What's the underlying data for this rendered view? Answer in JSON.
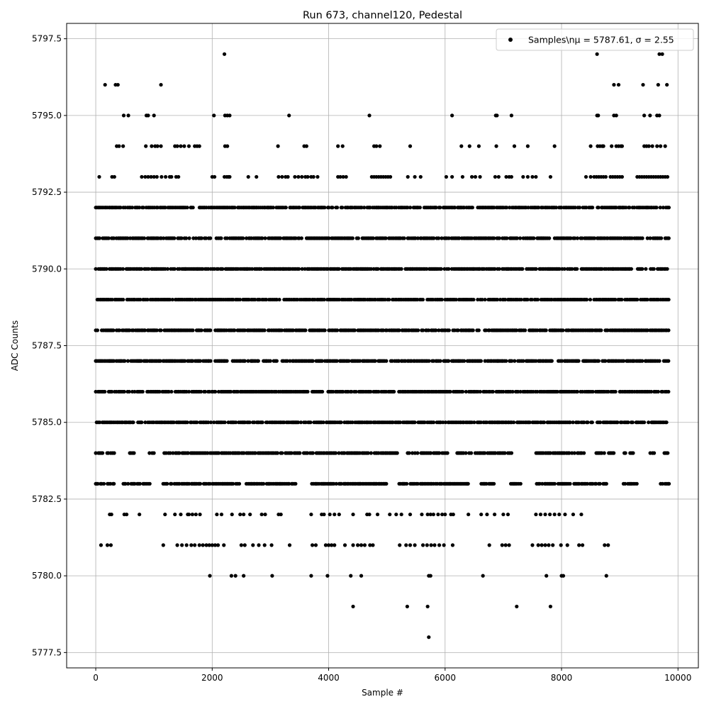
{
  "chart_data": {
    "type": "scatter",
    "title": "Run 673, channel120, Pedestal",
    "xlabel": "Sample #",
    "ylabel": "ADC Counts",
    "xlim": [
      -500,
      10350
    ],
    "ylim": [
      5777.0,
      5798.0
    ],
    "x_ticks": [
      0,
      2000,
      4000,
      6000,
      8000,
      10000
    ],
    "y_ticks": [
      5777.5,
      5780.0,
      5782.5,
      5785.0,
      5787.5,
      5790.0,
      5792.5,
      5795.0,
      5797.5
    ],
    "x_tick_labels": [
      "0",
      "2000",
      "4000",
      "6000",
      "8000",
      "10000"
    ],
    "y_tick_labels": [
      "5777.5",
      "5780.0",
      "5782.5",
      "5785.0",
      "5787.5",
      "5790.0",
      "5792.5",
      "5795.0",
      "5797.5"
    ],
    "grid": true,
    "legend_position": "top-right",
    "marker_color": "#000000",
    "series": [
      {
        "name": "Samples\\nμ = 5787.61, σ = 2.55",
        "x_range": [
          0,
          9850
        ],
        "level_samples": [
          {
            "y": 5778,
            "x": [
              5720
            ]
          },
          {
            "y": 5779,
            "x": [
              4420,
              5350,
              5700,
              7230,
              7810
            ]
          },
          {
            "y": 5780,
            "x": [
              1960,
              2330,
              2400,
              2540,
              3030,
              3700,
              3980,
              4380,
              4560,
              5720,
              5750,
              6650,
              7740,
              8000,
              8030,
              8770
            ]
          },
          {
            "y": 5781,
            "x": [
              90,
              200,
              260,
              1160,
              1400,
              1480,
              1560,
              1640,
              1700,
              1780,
              1840,
              1900,
              1950,
              2000,
              2050,
              2100,
              2200,
              2500,
              2560,
              2700,
              2800,
              2900,
              3020,
              3330,
              3720,
              3780,
              3950,
              4000,
              4050,
              4100,
              4280,
              4420,
              4500,
              4560,
              4620,
              4710,
              4760,
              5220,
              5330,
              5400,
              5480,
              5620,
              5690,
              5760,
              5820,
              5900,
              5980,
              6130,
              6760,
              6980,
              7040,
              7100,
              7500,
              7600,
              7660,
              7720,
              7780,
              7850,
              7990,
              8100,
              8300,
              8360,
              8740,
              8800
            ]
          },
          {
            "y": 5782,
            "x": [
              240,
              270,
              490,
              530,
              750,
              1190,
              1360,
              1460,
              1580,
              1600,
              1660,
              1720,
              1790,
              2080,
              2160,
              2340,
              2480,
              2540,
              2650,
              2850,
              2910,
              3140,
              3180,
              3700,
              3880,
              3920,
              4020,
              4100,
              4180,
              4420,
              4660,
              4700,
              4840,
              5050,
              5160,
              5250,
              5400,
              5600,
              5700,
              5750,
              5800,
              5880,
              5950,
              6000,
              6100,
              6140,
              6400,
              6620,
              6720,
              6850,
              7000,
              7080,
              7560,
              7640,
              7720,
              7800,
              7880,
              7960,
              8060,
              8200,
              8340
            ]
          },
          {
            "y": 5783,
            "x_dense": [
              0,
              9850
            ],
            "gaps": [
              [
                150,
                200
              ],
              [
                330,
                450
              ],
              [
                950,
                1150
              ],
              [
                2480,
                2550
              ],
              [
                3450,
                3700
              ],
              [
                5000,
                5200
              ],
              [
                6400,
                6600
              ],
              [
                6850,
                7100
              ],
              [
                7300,
                7550
              ],
              [
                8800,
                9050
              ],
              [
                9300,
                9700
              ]
            ]
          },
          {
            "y": 5784,
            "x_dense": [
              0,
              9850
            ],
            "gaps": [
              [
                350,
                580
              ],
              [
                680,
                900
              ],
              [
                1000,
                1150
              ],
              [
                5200,
                5350
              ],
              [
                6050,
                6200
              ],
              [
                7150,
                7550
              ],
              [
                8400,
                8550
              ],
              [
                8900,
                9050
              ],
              [
                9250,
                9500
              ],
              [
                9600,
                9750
              ]
            ]
          },
          {
            "y": 5785,
            "x_dense": [
              0,
              9850
            ],
            "gaps": []
          },
          {
            "y": 5786,
            "x_dense": [
              0,
              9850
            ],
            "gaps": []
          },
          {
            "y": 5787,
            "x_dense": [
              0,
              9850
            ],
            "gaps": []
          },
          {
            "y": 5788,
            "x_dense": [
              0,
              9850
            ],
            "gaps": []
          },
          {
            "y": 5789,
            "x_dense": [
              0,
              9850
            ],
            "gaps": []
          },
          {
            "y": 5790,
            "x_dense": [
              0,
              9850
            ],
            "gaps": []
          },
          {
            "y": 5791,
            "x_dense": [
              0,
              9850
            ],
            "gaps": []
          },
          {
            "y": 5792,
            "x_dense": [
              0,
              9850
            ],
            "gaps": []
          },
          {
            "y": 5793,
            "x": [
              60,
              280,
              320,
              790,
              850,
              900,
              950,
              1000,
              1050,
              1130,
              1200,
              1270,
              1300,
              1380,
              1420,
              2000,
              2040,
              2210,
              2250,
              2280,
              2300,
              2620,
              2760,
              3140,
              3200,
              3260,
              3300,
              3420,
              3480,
              3540,
              3600,
              3640,
              3700,
              3740,
              3810,
              4160,
              4200,
              4250,
              4300,
              4740,
              4780,
              4820,
              4860,
              4900,
              4940,
              4980,
              5020,
              5060,
              5360,
              5480,
              5580,
              6020,
              6120,
              6300,
              6460,
              6520,
              6600,
              6860,
              6920,
              7050,
              7100,
              7140,
              7340,
              7420,
              7500,
              7560,
              7810,
              8420,
              8500,
              8560,
              8600,
              8640,
              8680,
              8720,
              8760,
              8840,
              8880,
              8920,
              8960,
              9000,
              9040,
              9300,
              9340,
              9380,
              9420,
              9460,
              9500,
              9540,
              9580,
              9620,
              9660,
              9700,
              9740,
              9780,
              9820
            ]
          },
          {
            "y": 5794,
            "x": [
              360,
              400,
              470,
              860,
              960,
              1020,
              1060,
              1120,
              1360,
              1400,
              1460,
              1520,
              1600,
              1700,
              1740,
              1780,
              2220,
              2260,
              3130,
              3580,
              3620,
              4160,
              4240,
              4780,
              4820,
              4880,
              5400,
              6280,
              6420,
              6580,
              6880,
              7190,
              7420,
              7880,
              8500,
              8620,
              8660,
              8700,
              8720,
              8860,
              8940,
              8980,
              9020,
              9040,
              9420,
              9460,
              9500,
              9560,
              9640,
              9700,
              9780
            ]
          },
          {
            "y": 5795,
            "x": [
              480,
              560,
              870,
              900,
              1000,
              2030,
              2220,
              2260,
              2300,
              3320,
              4700,
              6120,
              6870,
              6890,
              7140,
              8610,
              8630,
              8900,
              8940,
              9420,
              9520,
              9640,
              9680
            ]
          },
          {
            "y": 5796,
            "x": [
              160,
              340,
              380,
              1120,
              8900,
              8980,
              9400,
              9660,
              9810
            ]
          },
          {
            "y": 5797,
            "x": [
              2210,
              8610,
              9680,
              9730
            ]
          }
        ]
      }
    ]
  }
}
